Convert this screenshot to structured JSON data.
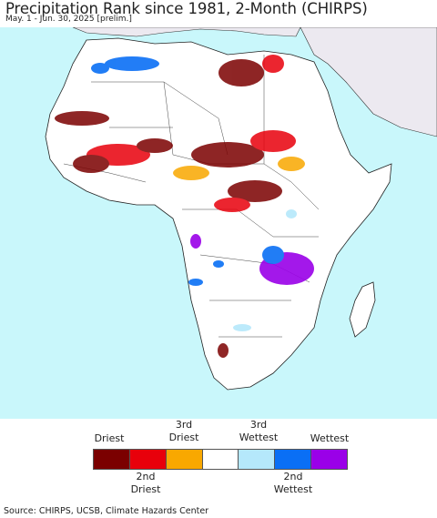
{
  "title": "Precipitation Rank since 1981, 2-Month (CHIRPS)",
  "subtitle": "May. 1 - Jun. 30, 2025 [prelim.]",
  "legend": {
    "top_labels": [
      "Driest",
      "3rd\nDriest",
      "3rd\nWettest",
      "Wettest"
    ],
    "bottom_labels": [
      "2nd\nDriest",
      "2nd\nWettest"
    ],
    "colors": [
      "#7b0000",
      "#e8000b",
      "#f9a800",
      "#ffffff",
      "#b5e8fb",
      "#0a6ff5",
      "#9a00e8"
    ]
  },
  "source": "Source: CHIRPS, UCSB, Climate Hazards Center",
  "map_colors": {
    "ocean": "#c9f7fb",
    "land": "#ffffff",
    "outside_region": "#ece9f0",
    "border": "#333333"
  }
}
